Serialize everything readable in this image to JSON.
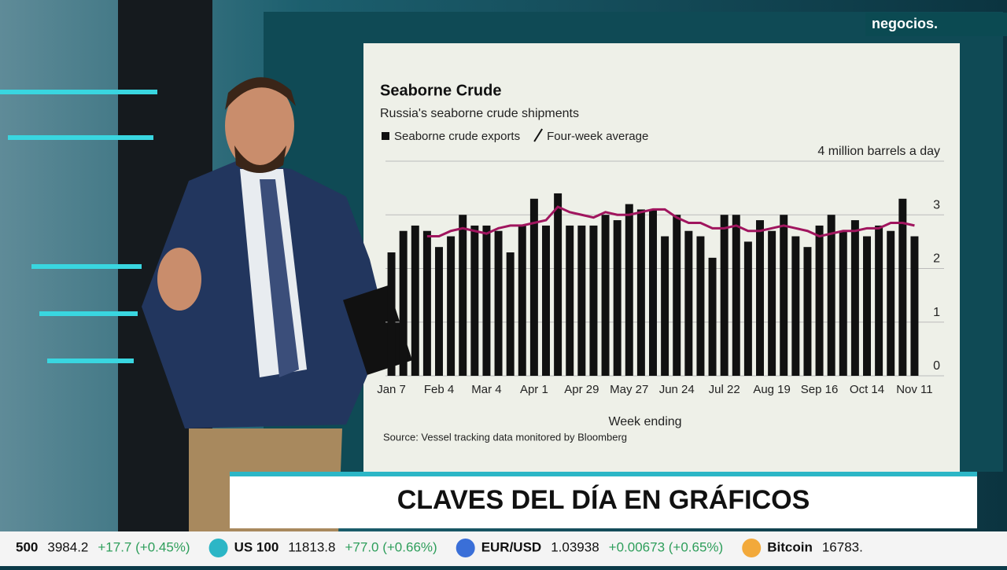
{
  "brand": {
    "logo": "negocios."
  },
  "chart_data": {
    "type": "bar",
    "title": "Seaborne Crude",
    "subtitle": "Russia's seaborne crude shipments",
    "x_label": "Week ending",
    "source": "Source: Vessel tracking data monitored by Bloomberg",
    "categories": [
      "Jan 7",
      null,
      null,
      null,
      "Feb 4",
      null,
      null,
      null,
      "Mar 4",
      null,
      null,
      null,
      "Apr 1",
      null,
      null,
      null,
      "Apr 29",
      null,
      null,
      null,
      "May 27",
      null,
      null,
      null,
      "Jun 24",
      null,
      null,
      null,
      "Jul 22",
      null,
      null,
      null,
      "Aug 19",
      null,
      null,
      null,
      "Sep 16",
      null,
      null,
      null,
      "Oct 14",
      null,
      null,
      null,
      "Nov 11"
    ],
    "series": [
      {
        "name": "Seaborne crude exports",
        "color": "#111111",
        "type": "bar",
        "values": [
          2.3,
          2.7,
          2.8,
          2.7,
          2.4,
          2.6,
          3.0,
          2.8,
          2.8,
          2.7,
          2.3,
          2.8,
          3.3,
          2.8,
          3.4,
          2.8,
          2.8,
          2.8,
          3.0,
          2.9,
          3.2,
          3.1,
          3.1,
          2.6,
          3.0,
          2.7,
          2.6,
          2.2,
          3.0,
          3.0,
          2.5,
          2.9,
          2.7,
          3.0,
          2.6,
          2.4,
          2.8,
          3.0,
          2.7,
          2.9,
          2.6,
          2.8,
          2.7,
          3.3,
          2.6
        ]
      },
      {
        "name": "Four-week average",
        "color": "#a0155e",
        "type": "line",
        "values": [
          null,
          null,
          null,
          2.6,
          2.6,
          2.7,
          2.75,
          2.7,
          2.65,
          2.75,
          2.8,
          2.8,
          2.85,
          2.9,
          3.15,
          3.05,
          3.0,
          2.95,
          3.05,
          3.0,
          3.0,
          3.05,
          3.1,
          3.1,
          2.95,
          2.85,
          2.85,
          2.75,
          2.75,
          2.8,
          2.7,
          2.7,
          2.75,
          2.8,
          2.75,
          2.7,
          2.6,
          2.65,
          2.7,
          2.7,
          2.75,
          2.75,
          2.85,
          2.85,
          2.8
        ]
      }
    ],
    "ylim": [
      0,
      4
    ],
    "yticks": [
      0,
      1,
      2,
      3,
      {
        "value": 4,
        "label": "4 million barrels a day"
      }
    ]
  },
  "banner": {
    "title": "CLAVES DEL DÍA EN GRÁFICOS"
  },
  "ticker": [
    {
      "name": "500",
      "price": "3984.2",
      "change": "+17.7 (+0.45%)"
    },
    {
      "name": "US 100",
      "price": "11813.8",
      "change": "+77.0 (+0.66%)"
    },
    {
      "name": "EUR/USD",
      "price": "1.03938",
      "change": "+0.00673 (+0.65%)"
    },
    {
      "name": "Bitcoin",
      "price": "16783."
    }
  ]
}
